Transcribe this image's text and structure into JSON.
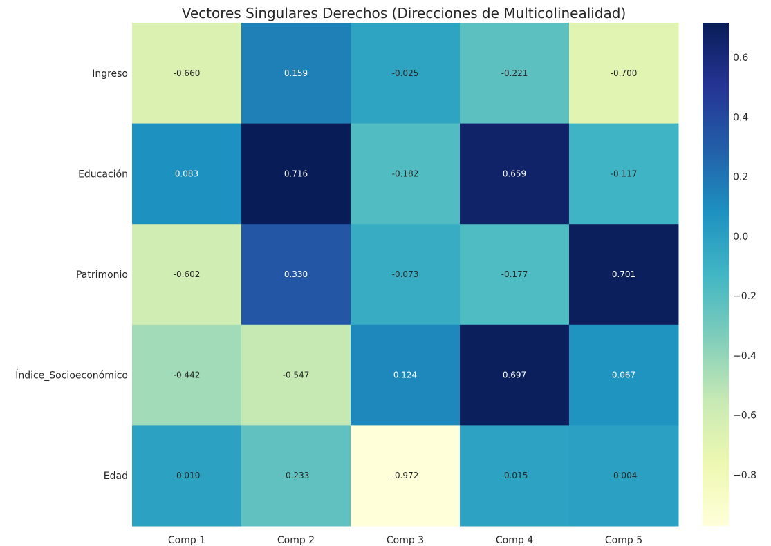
{
  "chart_data": {
    "type": "heatmap",
    "title": "Vectores Singulares Derechos (Direcciones de Multicolinealidad)",
    "rows": [
      "Ingreso",
      "Educación",
      "Patrimonio",
      "Índice_Socioeconómico",
      "Edad"
    ],
    "columns": [
      "Comp 1",
      "Comp 2",
      "Comp 3",
      "Comp 4",
      "Comp 5"
    ],
    "values": [
      [
        -0.66,
        0.159,
        -0.025,
        -0.221,
        -0.7
      ],
      [
        0.083,
        0.716,
        -0.182,
        0.659,
        -0.117
      ],
      [
        -0.602,
        0.33,
        -0.073,
        -0.177,
        0.701
      ],
      [
        -0.442,
        -0.547,
        0.124,
        0.697,
        0.067
      ],
      [
        -0.01,
        -0.233,
        -0.972,
        -0.015,
        -0.004
      ]
    ],
    "annotations": [
      [
        "-0.660",
        "0.159",
        "-0.025",
        "-0.221",
        "-0.700"
      ],
      [
        "0.083",
        "0.716",
        "-0.182",
        "0.659",
        "-0.117"
      ],
      [
        "-0.602",
        "0.330",
        "-0.073",
        "-0.177",
        "0.701"
      ],
      [
        "-0.442",
        "-0.547",
        "0.124",
        "0.697",
        "0.067"
      ],
      [
        "-0.010",
        "-0.233",
        "-0.972",
        "-0.015",
        "-0.004"
      ]
    ],
    "colormap": "YlGnBu",
    "colorbar": {
      "range": [
        -0.972,
        0.716
      ],
      "ticks": [
        -0.8,
        -0.6,
        -0.4,
        -0.2,
        0.0,
        0.2,
        0.4,
        0.6
      ],
      "tick_labels": [
        "−0.8",
        "−0.6",
        "−0.4",
        "−0.2",
        "0.0",
        "0.2",
        "0.4",
        "0.6"
      ]
    },
    "grid": false
  }
}
